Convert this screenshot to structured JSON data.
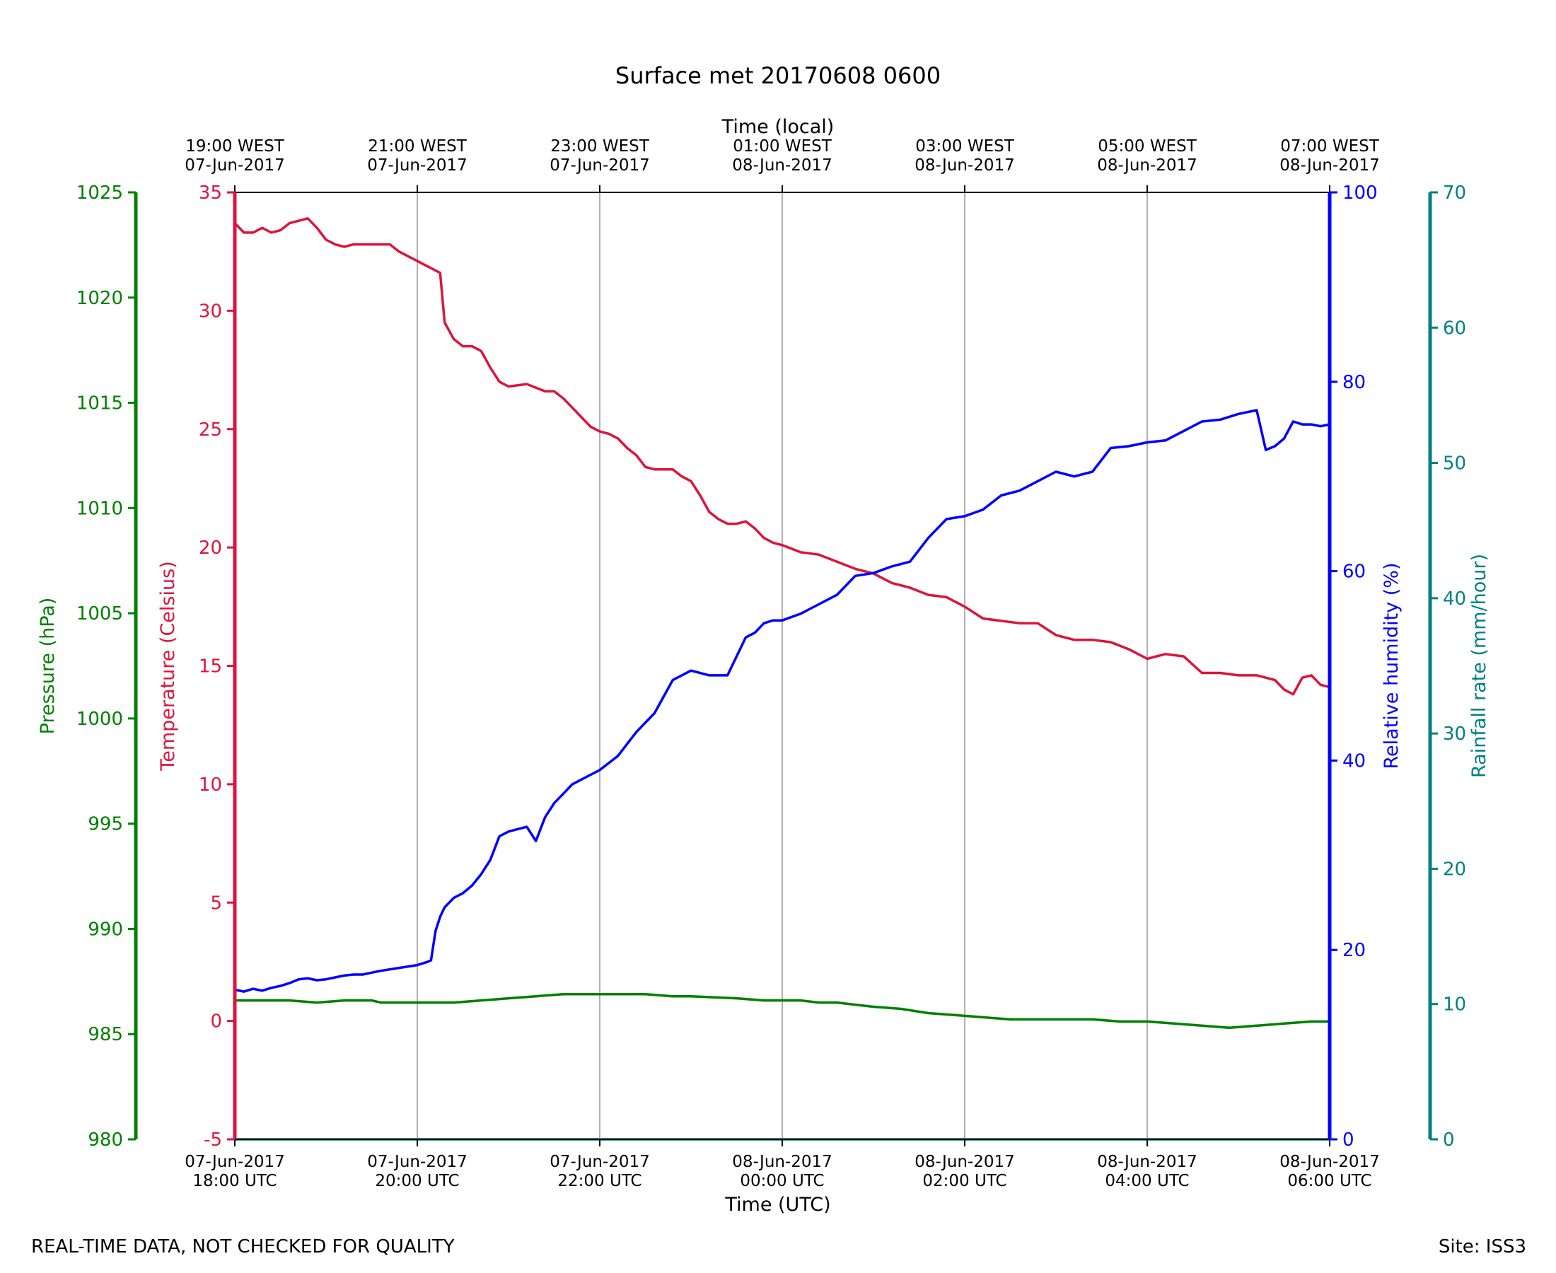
{
  "chart_data": {
    "type": "line",
    "title": "Surface met 20170608 0600",
    "footer_left": "REAL-TIME DATA, NOT CHECKED FOR QUALITY",
    "footer_right": "Site: ISS3",
    "x_bottom": {
      "label": "Time (UTC)",
      "range": [
        0,
        12
      ],
      "ticks": [
        {
          "value": 0,
          "line1": "07-Jun-2017",
          "line2": "18:00 UTC"
        },
        {
          "value": 2,
          "line1": "07-Jun-2017",
          "line2": "20:00 UTC"
        },
        {
          "value": 4,
          "line1": "07-Jun-2017",
          "line2": "22:00 UTC"
        },
        {
          "value": 6,
          "line1": "08-Jun-2017",
          "line2": "00:00 UTC"
        },
        {
          "value": 8,
          "line1": "08-Jun-2017",
          "line2": "02:00 UTC"
        },
        {
          "value": 10,
          "line1": "08-Jun-2017",
          "line2": "04:00 UTC"
        },
        {
          "value": 12,
          "line1": "08-Jun-2017",
          "line2": "06:00 UTC"
        }
      ]
    },
    "x_top": {
      "label": "Time (local)",
      "ticks": [
        {
          "value": 0,
          "line1": "19:00 WEST",
          "line2": "07-Jun-2017"
        },
        {
          "value": 2,
          "line1": "21:00 WEST",
          "line2": "07-Jun-2017"
        },
        {
          "value": 4,
          "line1": "23:00 WEST",
          "line2": "07-Jun-2017"
        },
        {
          "value": 6,
          "line1": "01:00 WEST",
          "line2": "08-Jun-2017"
        },
        {
          "value": 8,
          "line1": "03:00 WEST",
          "line2": "08-Jun-2017"
        },
        {
          "value": 10,
          "line1": "05:00 WEST",
          "line2": "08-Jun-2017"
        },
        {
          "value": 12,
          "line1": "07:00 WEST",
          "line2": "08-Jun-2017"
        }
      ]
    },
    "grid": "vertical",
    "axes": {
      "pressure": {
        "label": "Pressure (hPa)",
        "color": "#008000",
        "range": [
          980,
          1025
        ],
        "ticks": [
          980,
          985,
          990,
          995,
          1000,
          1005,
          1010,
          1015,
          1020,
          1025
        ]
      },
      "temperature": {
        "label": "Temperature (Celsius)",
        "color": "#dc143c",
        "range": [
          -5,
          35
        ],
        "ticks": [
          -5,
          0,
          5,
          10,
          15,
          20,
          25,
          30,
          35
        ]
      },
      "humidity": {
        "label": "Relative humidity (%)",
        "color": "#0000ff",
        "range": [
          0,
          100
        ],
        "ticks": [
          0,
          20,
          40,
          60,
          80,
          100
        ]
      },
      "rainfall": {
        "label": "Rainfall rate (mm/hour)",
        "color": "#008080",
        "range": [
          0,
          70
        ],
        "ticks": [
          0,
          10,
          20,
          30,
          40,
          50,
          60,
          70
        ]
      }
    },
    "series": [
      {
        "axis": "temperature",
        "x": [
          0,
          0.1,
          0.2,
          0.3,
          0.4,
          0.5,
          0.6,
          0.7,
          0.8,
          0.9,
          1.0,
          1.1,
          1.2,
          1.3,
          1.4,
          1.5,
          1.6,
          1.7,
          1.8,
          1.9,
          2.0,
          2.1,
          2.15,
          2.2,
          2.25,
          2.3,
          2.4,
          2.5,
          2.6,
          2.7,
          2.8,
          2.9,
          3.0,
          3.2,
          3.4,
          3.5,
          3.6,
          3.7,
          3.8,
          3.9,
          4.0,
          4.1,
          4.2,
          4.3,
          4.4,
          4.5,
          4.6,
          4.7,
          4.8,
          4.9,
          5.0,
          5.1,
          5.2,
          5.3,
          5.4,
          5.5,
          5.6,
          5.7,
          5.8,
          5.9,
          6.0,
          6.2,
          6.4,
          6.6,
          6.8,
          7.0,
          7.2,
          7.4,
          7.6,
          7.8,
          8.0,
          8.2,
          8.4,
          8.6,
          8.8,
          9.0,
          9.2,
          9.4,
          9.6,
          9.8,
          10.0,
          10.2,
          10.4,
          10.6,
          10.8,
          11.0,
          11.2,
          11.4,
          11.5,
          11.6,
          11.7,
          11.8,
          11.9,
          12.0
        ],
        "y": [
          33.7,
          33.3,
          33.3,
          33.5,
          33.3,
          33.4,
          33.7,
          33.8,
          33.9,
          33.5,
          33.0,
          32.8,
          32.7,
          32.8,
          32.8,
          32.8,
          32.8,
          32.8,
          32.5,
          32.3,
          32.1,
          31.9,
          31.8,
          31.7,
          31.6,
          29.5,
          28.8,
          28.5,
          28.5,
          28.3,
          27.6,
          27.0,
          26.8,
          26.9,
          26.6,
          26.6,
          26.3,
          25.9,
          25.5,
          25.1,
          24.9,
          24.8,
          24.6,
          24.2,
          23.9,
          23.4,
          23.3,
          23.3,
          23.3,
          23.0,
          22.8,
          22.2,
          21.5,
          21.2,
          21.0,
          21.0,
          21.1,
          20.8,
          20.4,
          20.2,
          20.1,
          19.8,
          19.7,
          19.4,
          19.1,
          18.9,
          18.5,
          18.3,
          18.0,
          17.9,
          17.5,
          17.0,
          16.9,
          16.8,
          16.8,
          16.3,
          16.1,
          16.1,
          16.0,
          15.7,
          15.3,
          15.5,
          15.4,
          14.7,
          14.7,
          14.6,
          14.6,
          14.4,
          14.0,
          13.8,
          14.5,
          14.6,
          14.2,
          14.1
        ]
      },
      {
        "axis": "humidity",
        "x": [
          0,
          0.1,
          0.2,
          0.3,
          0.4,
          0.5,
          0.6,
          0.7,
          0.8,
          0.9,
          1.0,
          1.1,
          1.2,
          1.3,
          1.4,
          1.5,
          1.6,
          1.8,
          2.0,
          2.1,
          2.15,
          2.2,
          2.25,
          2.3,
          2.4,
          2.5,
          2.6,
          2.7,
          2.8,
          2.9,
          3.0,
          3.2,
          3.3,
          3.4,
          3.5,
          3.6,
          3.7,
          3.8,
          3.9,
          4.0,
          4.2,
          4.4,
          4.6,
          4.8,
          5.0,
          5.2,
          5.4,
          5.6,
          5.7,
          5.8,
          5.9,
          6.0,
          6.2,
          6.4,
          6.6,
          6.8,
          7.0,
          7.2,
          7.4,
          7.6,
          7.8,
          8.0,
          8.2,
          8.4,
          8.6,
          8.8,
          9.0,
          9.2,
          9.4,
          9.6,
          9.8,
          10.0,
          10.2,
          10.4,
          10.6,
          10.8,
          11.0,
          11.2,
          11.3,
          11.4,
          11.5,
          11.6,
          11.7,
          11.8,
          11.9,
          12.0
        ],
        "y": [
          15.8,
          15.6,
          15.9,
          15.7,
          16.0,
          16.2,
          16.5,
          16.9,
          17.0,
          16.8,
          16.9,
          17.1,
          17.3,
          17.4,
          17.4,
          17.6,
          17.8,
          18.1,
          18.4,
          18.7,
          18.9,
          22.0,
          23.5,
          24.5,
          25.5,
          26.0,
          26.8,
          28.0,
          29.5,
          32.0,
          32.5,
          33.0,
          31.5,
          34.0,
          35.5,
          36.5,
          37.5,
          38.0,
          38.5,
          39.0,
          40.5,
          43.0,
          45.0,
          48.5,
          49.5,
          49.0,
          49.0,
          53.0,
          53.5,
          54.5,
          54.8,
          54.8,
          55.5,
          56.5,
          57.5,
          59.5,
          59.8,
          60.5,
          61.0,
          63.5,
          65.5,
          65.8,
          66.5,
          68.0,
          68.5,
          69.5,
          70.5,
          70.0,
          70.5,
          73.0,
          73.2,
          73.6,
          73.8,
          74.8,
          75.8,
          76.0,
          76.6,
          77.0,
          72.8,
          73.2,
          74.0,
          75.8,
          75.5,
          75.5,
          75.3,
          75.5
        ]
      },
      {
        "axis": "pressure",
        "x": [
          0,
          0.3,
          0.6,
          0.9,
          1.2,
          1.5,
          1.6,
          2.0,
          2.4,
          2.7,
          3.0,
          3.3,
          3.6,
          4.0,
          4.5,
          4.8,
          5.0,
          5.5,
          5.8,
          6.0,
          6.2,
          6.4,
          6.6,
          6.8,
          7.0,
          7.3,
          7.6,
          7.9,
          8.2,
          8.5,
          8.8,
          9.1,
          9.4,
          9.7,
          10.0,
          10.3,
          10.6,
          10.9,
          11.2,
          11.5,
          11.8,
          12.0
        ],
        "y": [
          986.6,
          986.6,
          986.6,
          986.5,
          986.6,
          986.6,
          986.5,
          986.5,
          986.5,
          986.6,
          986.7,
          986.8,
          986.9,
          986.9,
          986.9,
          986.8,
          986.8,
          986.7,
          986.6,
          986.6,
          986.6,
          986.5,
          986.5,
          986.4,
          986.3,
          986.2,
          986.0,
          985.9,
          985.8,
          985.7,
          985.7,
          985.7,
          985.7,
          985.6,
          985.6,
          985.5,
          985.4,
          985.3,
          985.4,
          985.5,
          985.6,
          985.6
        ]
      },
      {
        "axis": "rainfall",
        "x": [
          0,
          12
        ],
        "y": [
          0,
          0
        ]
      }
    ]
  }
}
